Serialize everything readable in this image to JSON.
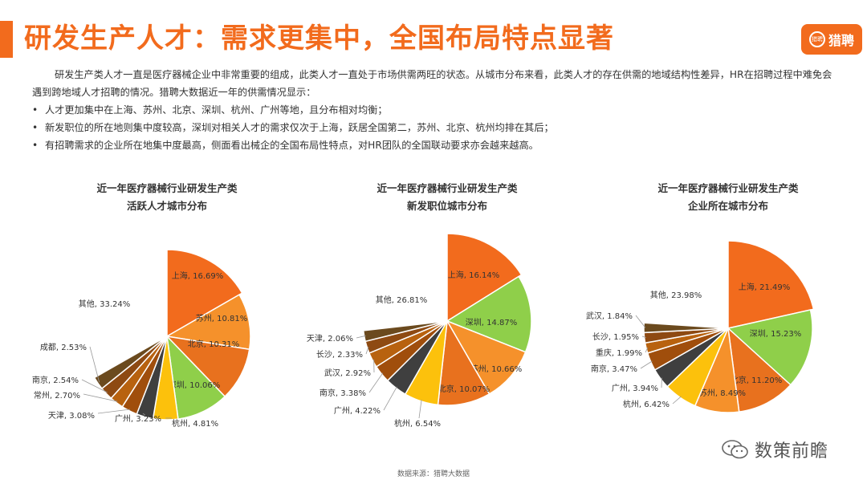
{
  "header": {
    "title": "研发生产人才：需求更集中，全国布局特点显著",
    "logo_text": "猎聘",
    "logo_mark": "猎聘",
    "accent_color": "#f26b1d"
  },
  "intro": {
    "paragraph": "研发生产类人才一直是医疗器械企业中非常重要的组成，此类人才一直处于市场供需两旺的状态。从城市分布来看，此类人才的存在供需的地域结构性差异，HR在招聘过程中难免会遇到跨地域人才招聘的情况。猎聘大数据近一年的供需情况显示：",
    "bullets": [
      "人才更加集中在上海、苏州、北京、深圳、杭州、广州等地，且分布相对均衡；",
      "新发职位的所在地则集中度较高，深圳对相关人才的需求仅次于上海，跃居全国第二，苏州、北京、杭州均排在其后；",
      "有招聘需求的企业所在地集中度最高，侧面看出械企的全国布局性特点，对HR团队的全国联动要求亦会越来越高。"
    ]
  },
  "chart_data": [
    {
      "type": "pie",
      "title": [
        "近一年医疗器械行业研发生产类",
        "活跃人才城市分布"
      ],
      "slices": [
        {
          "label": "上海",
          "value": 16.69,
          "color": "#f26b1d"
        },
        {
          "label": "苏州",
          "value": 10.81,
          "color": "#f5912b"
        },
        {
          "label": "北京",
          "value": 10.31,
          "color": "#e8711e"
        },
        {
          "label": "深圳",
          "value": 10.06,
          "color": "#8fcf4a"
        },
        {
          "label": "杭州",
          "value": 4.81,
          "color": "#fcc10c"
        },
        {
          "label": "广州",
          "value": 3.23,
          "color": "#3f3f3f"
        },
        {
          "label": "天津",
          "value": 3.08,
          "color": "#a04e0c"
        },
        {
          "label": "常州",
          "value": 2.7,
          "color": "#b8620f"
        },
        {
          "label": "南京",
          "value": 2.54,
          "color": "#8e4a12"
        },
        {
          "label": "成都",
          "value": 2.53,
          "color": "#6b4a1e"
        },
        {
          "label": "其他",
          "value": 33.24,
          "color": "#ffffff"
        }
      ],
      "value_labels": [
        "上海, 16.69%",
        "苏州, 10.81%",
        "北京, 10.31%",
        "深圳, 10.06%",
        "杭州, 4.81%",
        "广州, 3.23%",
        "天津, 3.08%",
        "常州, 2.70%",
        "南京, 2.54%",
        "成都, 2.53%",
        "其他, 33.24%"
      ]
    },
    {
      "type": "pie",
      "title": [
        "近一年医疗器械行业研发生产类",
        "新发职位城市分布"
      ],
      "slices": [
        {
          "label": "上海",
          "value": 16.14,
          "color": "#f26b1d"
        },
        {
          "label": "深圳",
          "value": 14.87,
          "color": "#8fcf4a"
        },
        {
          "label": "苏州",
          "value": 10.66,
          "color": "#f5912b"
        },
        {
          "label": "北京",
          "value": 10.07,
          "color": "#e8711e"
        },
        {
          "label": "杭州",
          "value": 6.54,
          "color": "#fcc10c"
        },
        {
          "label": "广州",
          "value": 4.22,
          "color": "#3f3f3f"
        },
        {
          "label": "南京",
          "value": 3.38,
          "color": "#a04e0c"
        },
        {
          "label": "武汉",
          "value": 2.92,
          "color": "#b8620f"
        },
        {
          "label": "长沙",
          "value": 2.33,
          "color": "#8e4a12"
        },
        {
          "label": "天津",
          "value": 2.06,
          "color": "#6b4a1e"
        },
        {
          "label": "其他",
          "value": 26.81,
          "color": "#ffffff"
        }
      ],
      "value_labels": [
        "上海, 16.14%",
        "深圳, 14.87%",
        "苏州, 10.66%",
        "北京, 10.07%",
        "杭州, 6.54%",
        "广州, 4.22%",
        "南京, 3.38%",
        "武汉, 2.92%",
        "长沙, 2.33%",
        "天津, 2.06%",
        "其他, 26.81%"
      ]
    },
    {
      "type": "pie",
      "title": [
        "近一年医疗器械行业研发生产类",
        "企业所在城市分布"
      ],
      "slices": [
        {
          "label": "上海",
          "value": 21.49,
          "color": "#f26b1d"
        },
        {
          "label": "深圳",
          "value": 15.23,
          "color": "#8fcf4a"
        },
        {
          "label": "北京",
          "value": 11.2,
          "color": "#e8711e"
        },
        {
          "label": "苏州",
          "value": 8.49,
          "color": "#f5912b"
        },
        {
          "label": "杭州",
          "value": 6.42,
          "color": "#fcc10c"
        },
        {
          "label": "广州",
          "value": 3.94,
          "color": "#3f3f3f"
        },
        {
          "label": "南京",
          "value": 3.47,
          "color": "#a04e0c"
        },
        {
          "label": "重庆",
          "value": 1.99,
          "color": "#b8620f"
        },
        {
          "label": "长沙",
          "value": 1.95,
          "color": "#8e4a12"
        },
        {
          "label": "武汉",
          "value": 1.84,
          "color": "#6b4a1e"
        },
        {
          "label": "其他",
          "value": 23.98,
          "color": "#ffffff"
        }
      ],
      "value_labels": [
        "上海, 21.49%",
        "深圳, 15.23%",
        "北京, 11.20%",
        "苏州, 8.49%",
        "杭州, 6.42%",
        "广州, 3.94%",
        "南京, 3.47%",
        "重庆, 1.99%",
        "长沙, 1.95%",
        "武汉, 1.84%",
        "其他, 23.98%"
      ]
    }
  ],
  "source": "数据来源：猎聘大数据",
  "watermark": "数策前瞻",
  "watermark_icon": "wechat-icon"
}
